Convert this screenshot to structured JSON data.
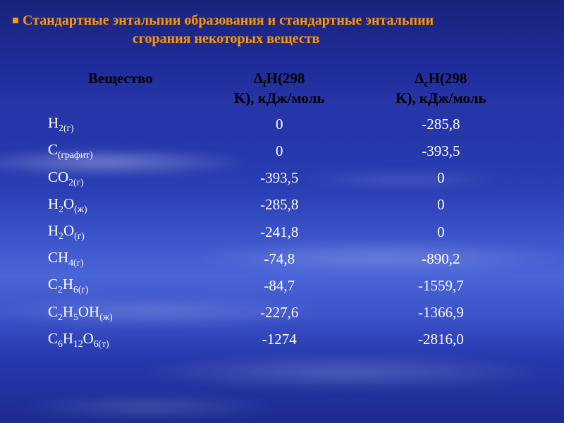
{
  "title": {
    "line1": "Стандартные энтальпии образования и стандартные энтальпии",
    "line2": "сгорания некоторых веществ",
    "color": "#ff9800",
    "bullet_color": "#ff9800",
    "fontsize": 20
  },
  "table": {
    "type": "table",
    "header_color": "#000000",
    "body_text_color": "#ffffff",
    "fontsize": 21,
    "columns": [
      {
        "label_plain": "Вещество",
        "prefix": "",
        "delta": "",
        "sub": "",
        "rest": "Вещество",
        "line2": ""
      },
      {
        "label_plain": "ΔfH(298 K), кДж/моль",
        "prefix": "Δ",
        "delta": "Δ",
        "sub": "f",
        "rest": "H(298",
        "line2": "K), кДж/моль"
      },
      {
        "label_plain": "ΔcH(298 K), кДж/моль",
        "prefix": "Δ",
        "delta": "Δ",
        "sub": "c",
        "rest": "H(298",
        "line2": "K), кДж/моль"
      }
    ],
    "rows": [
      {
        "substance_plain": "H2(г)",
        "base": "H",
        "sub": "2(г)",
        "dfH": "0",
        "dcH": "-285,8"
      },
      {
        "substance_plain": "C(графит)",
        "base": "C",
        "sub": "(графит)",
        "dfH": "0",
        "dcH": "-393,5"
      },
      {
        "substance_plain": "CO2(г)",
        "base": "CO",
        "sub": "2(г)",
        "dfH": "-393,5",
        "dcH": "0"
      },
      {
        "substance_plain": "H2O(ж)",
        "base": "H",
        "sub": "2",
        "mid": "O",
        "sub2": "(ж)",
        "dfH": "-285,8",
        "dcH": "0"
      },
      {
        "substance_plain": "H2O(г)",
        "base": "H",
        "sub": "2",
        "mid": "O",
        "sub2": "(г)",
        "dfH": "-241,8",
        "dcH": "0"
      },
      {
        "substance_plain": "CH4(г)",
        "base": "CH",
        "sub": "4(г)",
        "dfH": "-74,8",
        "dcH": "-890,2"
      },
      {
        "substance_plain": "C2H6(г)",
        "base": "C",
        "sub": "2",
        "mid": "H",
        "sub2": "6(г)",
        "dfH": "-84,7",
        "dcH": "-1559,7"
      },
      {
        "substance_plain": "C2H5OH(ж)",
        "base": "C",
        "sub": "2",
        "mid": "H",
        "sub2": "5",
        "tail": "OH",
        "sub3": "(ж)",
        "dfH": "-227,6",
        "dcH": "-1366,9"
      },
      {
        "substance_plain": "C6H12O6(т)",
        "base": "C",
        "sub": "6",
        "mid": "H",
        "sub2": "12",
        "tail": "O",
        "sub3": "6(т)",
        "dfH": "-1274",
        "dcH": "-2816,0"
      }
    ]
  },
  "background": {
    "gradient_colors": [
      "#1a237b",
      "#1e2b99",
      "#2635a8",
      "#2538ac",
      "#2b3fb5",
      "#3a52c8",
      "#4a65d8",
      "#3a52c8",
      "#2538ac",
      "#1e2b90"
    ],
    "cloud_color": "rgba(255,255,255,0.35)"
  }
}
